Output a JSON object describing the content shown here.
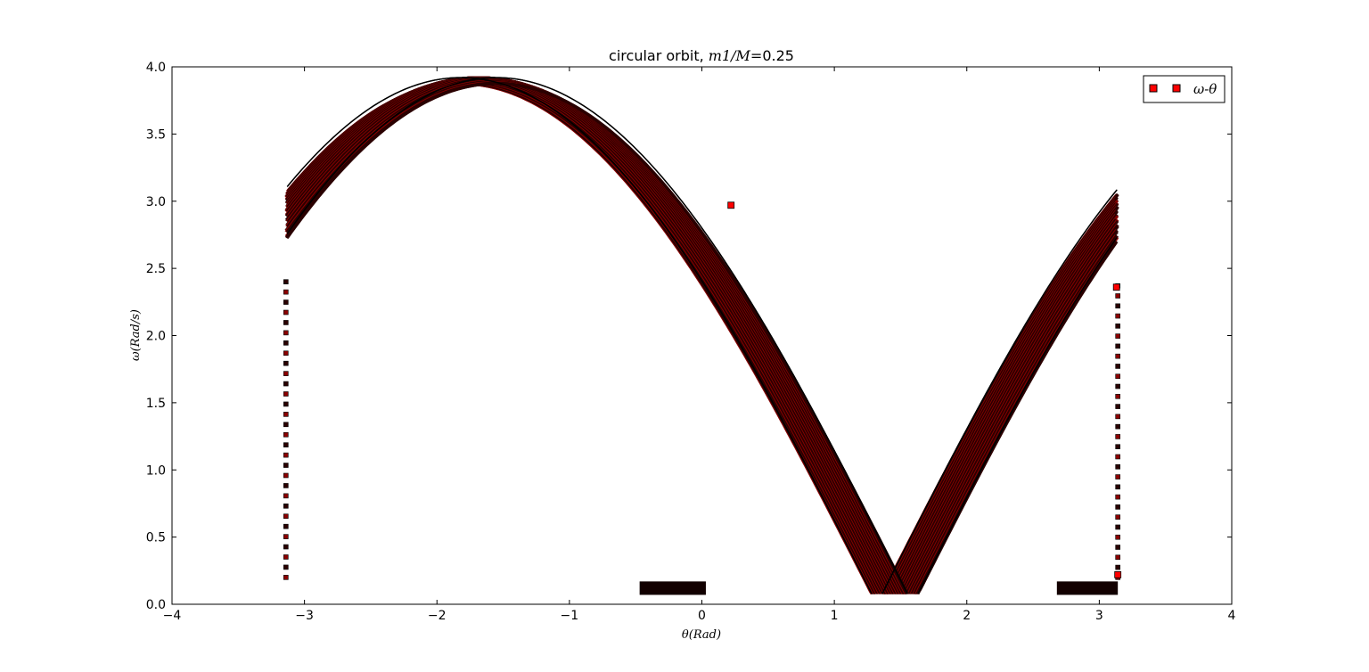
{
  "chart_data": {
    "type": "scatter",
    "title_prefix": "circular orbit, ",
    "title_math": "m1/M",
    "title_eq": "=",
    "title_value": "0.25",
    "xlabel": "θ(Rad)",
    "ylabel": "ω(Rad/s)",
    "xlim": [
      -4,
      4
    ],
    "ylim": [
      0.0,
      4.0
    ],
    "x_ticks": [
      -4,
      -3,
      -2,
      -1,
      0,
      1,
      2,
      3,
      4
    ],
    "x_tick_labels": [
      "−4",
      "−3",
      "−2",
      "−1",
      "0",
      "1",
      "2",
      "3",
      "4"
    ],
    "y_ticks": [
      0.0,
      0.5,
      1.0,
      1.5,
      2.0,
      2.5,
      3.0,
      3.5,
      4.0
    ],
    "y_tick_labels": [
      "0.0",
      "0.5",
      "1.0",
      "1.5",
      "2.0",
      "2.5",
      "3.0",
      "3.5",
      "4.0"
    ],
    "grid": false,
    "legend_position": "top-right",
    "series": [
      {
        "name": "ω-θ",
        "marker": "square",
        "color": "#ff0000",
        "edge_color": "#000000",
        "omega_max_range": [
          3.83,
          3.92
        ],
        "theta_wrap": [
          -3.1416,
          3.1416
        ],
        "branches_theta_at_top": [
          -1.82,
          -1.55,
          1.33,
          1.6
        ],
        "band_bottom": [
          {
            "theta_range": [
              -0.47,
              0.03
            ],
            "omega": 0.07
          },
          {
            "theta_range": [
              2.68,
              3.14
            ],
            "omega": 0.07
          }
        ],
        "wrap_edges": [
          {
            "theta": -3.14,
            "omega_range": [
              0.2,
              2.4
            ]
          },
          {
            "theta": 3.14,
            "omega_range": [
              0.2,
              2.37
            ]
          }
        ],
        "highlight_points": [
          {
            "x": 0.22,
            "y": 2.97
          },
          {
            "x": 3.13,
            "y": 2.36
          },
          {
            "x": 3.14,
            "y": 0.22
          }
        ]
      }
    ]
  },
  "colors": {
    "marker_face": "#ff0000",
    "band_dark": "#2a0000",
    "band_red": "#8b0000",
    "axes": "#000000"
  }
}
